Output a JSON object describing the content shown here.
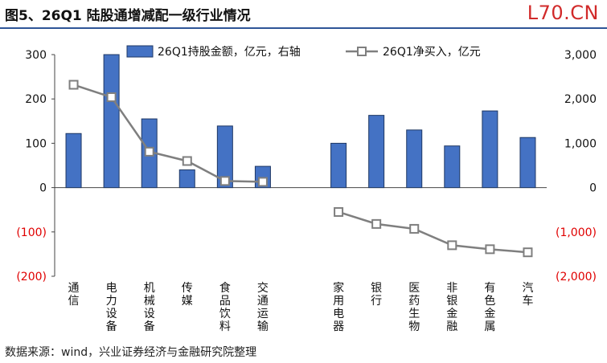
{
  "header": {
    "title": "图5、26Q1 陆股通增减配一级行业情况",
    "watermark": "L70.CN"
  },
  "footer": {
    "source": "数据来源：wind，兴业证券经济与金融研究院整理"
  },
  "colors": {
    "bar": "#4472c4",
    "bar_stroke": "#1f3864",
    "line": "#7f7f7f",
    "marker_fill": "#ffffff",
    "negative_tick": "#e00000",
    "rule": "#2e5597"
  },
  "chart_data": {
    "type": "bar",
    "categories": [
      "通信",
      "电力设备",
      "机械设备",
      "传媒",
      "食品饮料",
      "交通运输",
      "",
      "家用电器",
      "银行",
      "医药生物",
      "非银金融",
      "有色金属",
      "汽车"
    ],
    "series": [
      {
        "name": "26Q1持股金额，亿元，右轴",
        "type": "bar",
        "axis": "right",
        "values": [
          1220,
          3000,
          1550,
          400,
          1390,
          480,
          null,
          1000,
          1630,
          1300,
          940,
          1730,
          1130
        ]
      },
      {
        "name": "26Q1净买入，亿元",
        "type": "line",
        "axis": "left",
        "values": [
          232,
          204,
          81,
          60,
          15,
          13,
          null,
          -55,
          -82,
          -93,
          -130,
          -139,
          -146
        ]
      }
    ],
    "left_axis": {
      "ylim": [
        -200,
        300
      ],
      "ticks": [
        300,
        200,
        100,
        0,
        -100,
        -200
      ],
      "tick_labels": [
        "300",
        "200",
        "100",
        "0",
        "(100)",
        "(200)"
      ]
    },
    "right_axis": {
      "ylim": [
        -2000,
        3000
      ],
      "ticks": [
        3000,
        2000,
        1000,
        0,
        -1000,
        -2000
      ],
      "tick_labels": [
        "3,000",
        "2,000",
        "1,000",
        "0",
        "(1,000)",
        "(2,000)"
      ]
    },
    "legend": "top",
    "grid": false
  }
}
